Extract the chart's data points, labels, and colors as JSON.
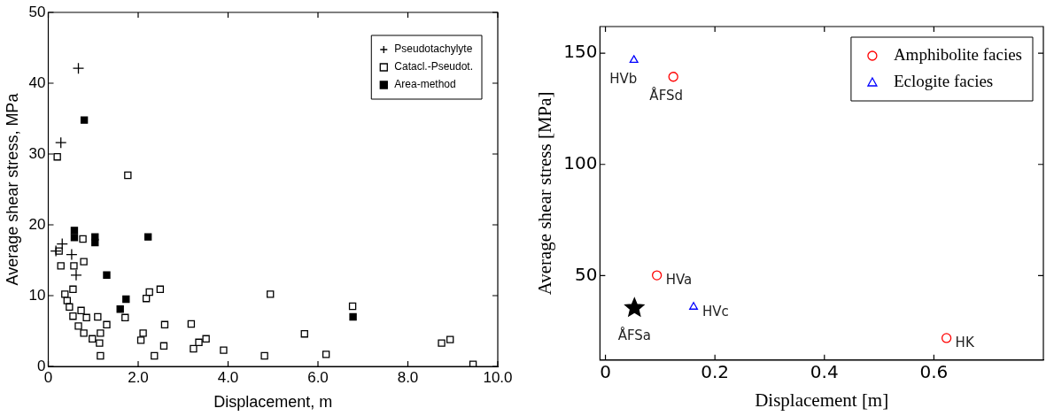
{
  "chart_data": [
    {
      "type": "scatter",
      "xlabel": "Displacement, m",
      "ylabel": "Average shear stress, MPa",
      "xlim": [
        0,
        10
      ],
      "ylim": [
        0,
        50
      ],
      "xticks": [
        0,
        {
          "value": 2,
          "label": "2.0"
        },
        {
          "value": 4,
          "label": "4.0"
        },
        {
          "value": 6,
          "label": "6.0"
        },
        {
          "value": 8,
          "label": "8.0"
        },
        {
          "value": 10,
          "label": "10.0"
        }
      ],
      "yticks": [
        0,
        10,
        20,
        30,
        40,
        50
      ],
      "legend": "top right",
      "series": [
        {
          "name": "Pseudotachylyte",
          "color": "#000000",
          "marker": "cross",
          "x": [
            0.67,
            0.28,
            0.17,
            0.31,
            0.52,
            0.62
          ],
          "values": [
            42.1,
            31.6,
            16.3,
            17.3,
            15.8,
            12.9
          ]
        },
        {
          "name": "Catacl.-Pseudot.",
          "color": "#000000",
          "marker": "square",
          "x": [
            0.2,
            1.77,
            0.24,
            0.77,
            0.28,
            0.57,
            0.79,
            0.55,
            0.37,
            0.42,
            0.47,
            0.55,
            0.73,
            0.85,
            0.67,
            0.79,
            0.98,
            1.1,
            1.16,
            1.14,
            1.3,
            1.16,
            1.71,
            2.18,
            2.25,
            2.49,
            2.11,
            2.06,
            2.59,
            2.57,
            2.36,
            3.18,
            3.23,
            3.35,
            3.51,
            3.9,
            4.94,
            4.81,
            5.7,
            6.18,
            6.77,
            8.75,
            8.94,
            9.45
          ],
          "values": [
            29.6,
            27.0,
            16.3,
            18.0,
            14.2,
            14.2,
            14.8,
            10.9,
            10.2,
            9.3,
            8.4,
            7.1,
            7.9,
            6.9,
            5.7,
            4.7,
            3.9,
            7.0,
            4.7,
            3.3,
            5.9,
            1.5,
            6.9,
            9.6,
            10.5,
            10.9,
            4.7,
            3.7,
            5.9,
            2.9,
            1.5,
            6.0,
            2.5,
            3.4,
            3.9,
            2.3,
            10.2,
            1.5,
            4.6,
            1.7,
            8.5,
            3.3,
            3.8,
            0.3
          ]
        },
        {
          "name": "Area-method",
          "color": "#000000",
          "marker": "square",
          "x": [
            0.8,
            0.58,
            0.58,
            1.04,
            1.04,
            1.3,
            2.22,
            1.73,
            1.6,
            6.78
          ],
          "values": [
            34.8,
            19.2,
            18.2,
            18.3,
            17.5,
            12.9,
            18.3,
            9.5,
            8.1,
            7.0
          ]
        }
      ]
    },
    {
      "type": "scatter",
      "xlabel": "Displacement [m]",
      "ylabel": "Average shear stress [MPa]",
      "xlim": [
        -0.01,
        0.8
      ],
      "ylim": [
        12,
        162
      ],
      "xticks": [
        0,
        0.2,
        0.4,
        0.6
      ],
      "yticks": [
        50,
        100,
        150
      ],
      "legend": "top right",
      "series": [
        {
          "name": "Amphibolite facies",
          "color": "#ff0000",
          "marker": "circle",
          "x": [
            0.124,
            0.094,
            0.623
          ],
          "values": [
            139.4,
            50.1,
            21.9
          ]
        },
        {
          "name": "Eclogite facies",
          "color": "#0000ff",
          "marker": "triangle",
          "x": [
            0.052,
            0.161
          ],
          "values": [
            146.9,
            35.9
          ]
        },
        {
          "color": "#000000",
          "marker": "star",
          "x": [
            0.053
          ],
          "values": [
            35.4
          ]
        }
      ],
      "annotations": [
        {
          "text": "HVb",
          "x": 0.052,
          "y": 146.9
        },
        {
          "text": "ÅFSd",
          "x": 0.124,
          "y": 139.4
        },
        {
          "text": "HVa",
          "x": 0.094,
          "y": 50.1
        },
        {
          "text": "HVc",
          "x": 0.161,
          "y": 35.9
        },
        {
          "text": "ÅFSa",
          "x": 0.053,
          "y": 35.4
        },
        {
          "text": "HK",
          "x": 0.623,
          "y": 21.9
        }
      ]
    }
  ]
}
